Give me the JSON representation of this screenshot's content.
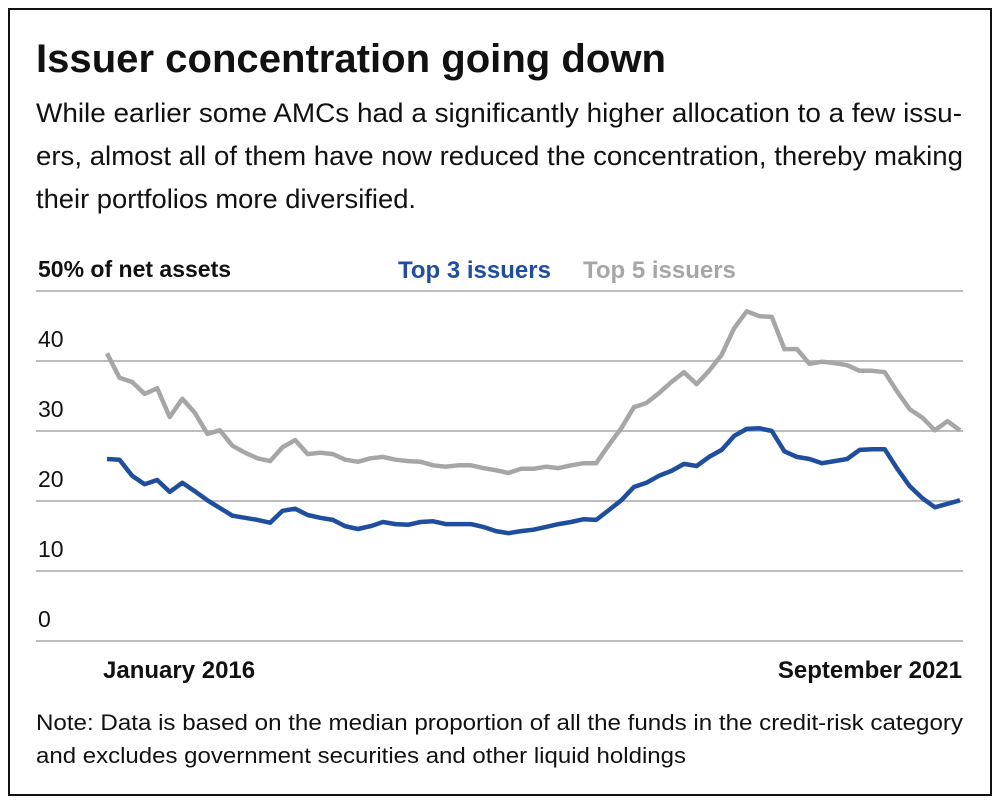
{
  "chart_data": {
    "type": "line",
    "title": "Issuer concentration going down",
    "subtitle": [
      "While earlier some AMCs had a significantly higher allocation to a few issu-",
      "ers, almost all of them have now reduced the concentration, thereby making",
      "their portfolios more diversified."
    ],
    "note": [
      "Note: Data is based on the median proportion of all the funds in the credit-risk category",
      "and excludes government securities and other liquid holdings"
    ],
    "categories": [
      "January 2016",
      null,
      null,
      null,
      null,
      null,
      null,
      null,
      null,
      null,
      null,
      null,
      null,
      null,
      null,
      null,
      null,
      null,
      null,
      null,
      null,
      null,
      null,
      null,
      null,
      null,
      null,
      null,
      null,
      null,
      null,
      null,
      null,
      null,
      null,
      null,
      null,
      null,
      null,
      null,
      null,
      null,
      null,
      null,
      null,
      null,
      null,
      null,
      null,
      null,
      null,
      null,
      null,
      null,
      null,
      null,
      null,
      null,
      null,
      null,
      null,
      null,
      null,
      null,
      null,
      null,
      null,
      null,
      "September 2021"
    ],
    "series": [
      {
        "name": "Top 3 issuers",
        "color": "#1f4e9e",
        "values": [
          26,
          25.9,
          23.6,
          22.4,
          23,
          21.3,
          22.6,
          21.4,
          20.1,
          19,
          17.9,
          17.6,
          17.3,
          16.9,
          18.6,
          18.9,
          18,
          17.6,
          17.3,
          16.4,
          16,
          16.4,
          17,
          16.7,
          16.6,
          17,
          17.1,
          16.7,
          16.7,
          16.7,
          16.3,
          15.7,
          15.4,
          15.7,
          15.9,
          16.3,
          16.7,
          17,
          17.4,
          17.3,
          18.7,
          20.1,
          22,
          22.6,
          23.6,
          24.3,
          25.3,
          25,
          26.3,
          27.3,
          29.3,
          30.3,
          30.4,
          30,
          27.1,
          26.3,
          26,
          25.4,
          25.7,
          26,
          27.3,
          27.4,
          27.4,
          24.6,
          22.1,
          20.4,
          19.1,
          19.6,
          20.1
        ]
      },
      {
        "name": "Top 5 issuers",
        "color": "#a6a6a6",
        "values": [
          41.1,
          37.6,
          37,
          35.3,
          36.1,
          32,
          34.6,
          32.6,
          29.6,
          30.1,
          27.9,
          26.9,
          26.1,
          25.7,
          27.7,
          28.7,
          26.7,
          26.9,
          26.7,
          25.9,
          25.6,
          26.1,
          26.3,
          25.9,
          25.7,
          25.6,
          25.1,
          24.9,
          25.1,
          25.1,
          24.7,
          24.4,
          24,
          24.6,
          24.6,
          24.9,
          24.7,
          25.1,
          25.4,
          25.4,
          28,
          30.4,
          33.4,
          34,
          35.4,
          37,
          38.4,
          36.7,
          38.6,
          40.9,
          44.7,
          47.1,
          46.4,
          46.3,
          41.7,
          41.7,
          39.6,
          39.9,
          39.7,
          39.4,
          38.6,
          38.6,
          38.4,
          35.6,
          33.1,
          31.9,
          30.1,
          31.4,
          30.1
        ]
      }
    ],
    "ylim": [
      0,
      50
    ],
    "yticks": [
      0,
      10,
      20,
      30,
      40,
      {
        "value": 50,
        "label": "50% of net assets"
      }
    ],
    "grid": true
  }
}
